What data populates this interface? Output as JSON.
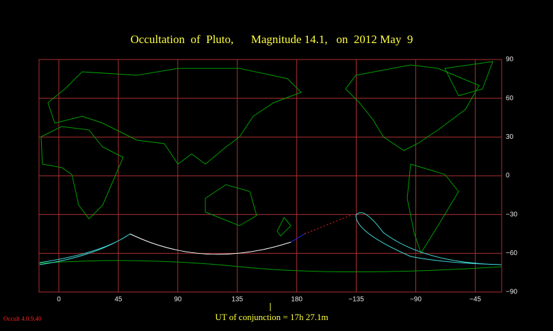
{
  "map": {
    "title": "Occultation  of  Pluto,      Magnitude 14.1,   on  2012 May  9",
    "xlim": [
      -15,
      335
    ],
    "ylim": [
      -90,
      90
    ],
    "xticks": [
      0,
      45,
      90,
      135,
      180,
      {
        "value": 225,
        "label": "−135"
      },
      {
        "value": 270,
        "label": "−90"
      },
      {
        "value": 315,
        "label": "−45"
      }
    ],
    "yticks": [
      90,
      60,
      30,
      0,
      {
        "value": -30,
        "label": "−30"
      },
      {
        "value": -60,
        "label": "−60"
      },
      {
        "value": -90,
        "label": "−90"
      }
    ],
    "conjunction": "UT of conjunction = 17h 27.1m",
    "version": "Occult 4.0.9.40"
  }
}
